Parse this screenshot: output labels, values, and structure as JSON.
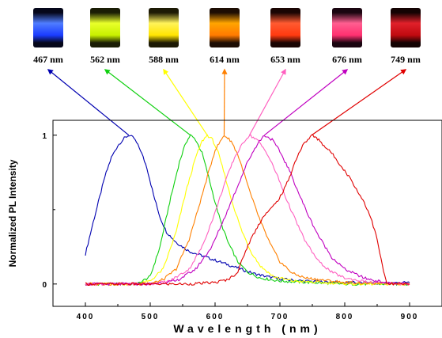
{
  "photos": [
    {
      "label": "467 nm",
      "color": "#1a3cff",
      "glow": "#4f7dff",
      "bg": "#05071a"
    },
    {
      "label": "562 nm",
      "color": "#c8f000",
      "glow": "#e8ff2a",
      "bg": "#1a1d05"
    },
    {
      "label": "588 nm",
      "color": "#ffe400",
      "glow": "#fff35a",
      "bg": "#1d1a05"
    },
    {
      "label": "614 nm",
      "color": "#ff7a00",
      "glow": "#ffa400",
      "bg": "#1d0d03"
    },
    {
      "label": "653 nm",
      "color": "#ff3a10",
      "glow": "#ff5a30",
      "bg": "#1a0503"
    },
    {
      "label": "676 nm",
      "color": "#ff3070",
      "glow": "#ff5e90",
      "bg": "#1a0510"
    },
    {
      "label": "749 nm",
      "color": "#c00a10",
      "glow": "#e0202a",
      "bg": "#140303"
    }
  ],
  "chart_data": {
    "type": "line",
    "xlabel": "Wavelength (nm)",
    "ylabel": "Normalized PL Intensity",
    "xlim": [
      350,
      950
    ],
    "ylim": [
      -0.15,
      1.1
    ],
    "x_ticks": [
      400,
      500,
      600,
      700,
      800,
      900
    ],
    "y_ticks": [
      0,
      1
    ],
    "series": [
      {
        "color": "#0000b0",
        "points": [
          [
            400,
            0.2
          ],
          [
            410,
            0.38
          ],
          [
            420,
            0.55
          ],
          [
            430,
            0.72
          ],
          [
            440,
            0.85
          ],
          [
            450,
            0.93
          ],
          [
            460,
            0.98
          ],
          [
            467,
            1.0
          ],
          [
            475,
            0.98
          ],
          [
            485,
            0.9
          ],
          [
            495,
            0.78
          ],
          [
            505,
            0.6
          ],
          [
            515,
            0.45
          ],
          [
            525,
            0.35
          ],
          [
            540,
            0.28
          ],
          [
            560,
            0.22
          ],
          [
            580,
            0.19
          ],
          [
            600,
            0.16
          ],
          [
            620,
            0.13
          ],
          [
            640,
            0.1
          ],
          [
            660,
            0.07
          ],
          [
            680,
            0.05
          ],
          [
            700,
            0.035
          ],
          [
            720,
            0.025
          ],
          [
            740,
            0.02
          ],
          [
            760,
            0.015
          ],
          [
            800,
            0.01
          ],
          [
            850,
            0.005
          ],
          [
            900,
            0.01
          ]
        ]
      },
      {
        "color": "#10d010",
        "points": [
          [
            400,
            0.0
          ],
          [
            450,
            0.0
          ],
          [
            480,
            0.0
          ],
          [
            500,
            0.05
          ],
          [
            515,
            0.25
          ],
          [
            530,
            0.55
          ],
          [
            545,
            0.82
          ],
          [
            555,
            0.95
          ],
          [
            562,
            1.0
          ],
          [
            570,
            0.97
          ],
          [
            580,
            0.88
          ],
          [
            590,
            0.72
          ],
          [
            600,
            0.55
          ],
          [
            610,
            0.4
          ],
          [
            620,
            0.28
          ],
          [
            635,
            0.15
          ],
          [
            650,
            0.08
          ],
          [
            670,
            0.04
          ],
          [
            700,
            0.02
          ],
          [
            750,
            0.01
          ],
          [
            800,
            0.0
          ],
          [
            900,
            0.0
          ]
        ]
      },
      {
        "color": "#ffff00",
        "points": [
          [
            400,
            0.0
          ],
          [
            480,
            0.0
          ],
          [
            500,
            0.02
          ],
          [
            520,
            0.1
          ],
          [
            540,
            0.35
          ],
          [
            555,
            0.62
          ],
          [
            570,
            0.85
          ],
          [
            580,
            0.96
          ],
          [
            588,
            1.0
          ],
          [
            596,
            0.97
          ],
          [
            605,
            0.88
          ],
          [
            615,
            0.73
          ],
          [
            625,
            0.57
          ],
          [
            640,
            0.37
          ],
          [
            655,
            0.22
          ],
          [
            670,
            0.12
          ],
          [
            690,
            0.05
          ],
          [
            720,
            0.02
          ],
          [
            760,
            0.01
          ],
          [
            820,
            0.0
          ],
          [
            900,
            0.0
          ]
        ]
      },
      {
        "color": "#ff8000",
        "points": [
          [
            400,
            0.0
          ],
          [
            500,
            0.0
          ],
          [
            520,
            0.03
          ],
          [
            540,
            0.1
          ],
          [
            560,
            0.3
          ],
          [
            575,
            0.52
          ],
          [
            590,
            0.75
          ],
          [
            600,
            0.9
          ],
          [
            614,
            1.0
          ],
          [
            625,
            0.96
          ],
          [
            635,
            0.87
          ],
          [
            645,
            0.74
          ],
          [
            655,
            0.6
          ],
          [
            670,
            0.42
          ],
          [
            685,
            0.27
          ],
          [
            700,
            0.15
          ],
          [
            720,
            0.07
          ],
          [
            740,
            0.04
          ],
          [
            760,
            0.03
          ],
          [
            800,
            0.01
          ],
          [
            900,
            0.0
          ]
        ]
      },
      {
        "color": "#ff60c0",
        "points": [
          [
            400,
            0.0
          ],
          [
            500,
            0.0
          ],
          [
            530,
            0.02
          ],
          [
            560,
            0.1
          ],
          [
            580,
            0.25
          ],
          [
            600,
            0.48
          ],
          [
            615,
            0.68
          ],
          [
            630,
            0.85
          ],
          [
            645,
            0.96
          ],
          [
            653,
            1.0
          ],
          [
            665,
            0.97
          ],
          [
            680,
            0.88
          ],
          [
            695,
            0.74
          ],
          [
            710,
            0.57
          ],
          [
            725,
            0.42
          ],
          [
            740,
            0.28
          ],
          [
            760,
            0.15
          ],
          [
            780,
            0.08
          ],
          [
            800,
            0.04
          ],
          [
            840,
            0.01
          ],
          [
            900,
            0.0
          ]
        ]
      },
      {
        "color": "#c000c0",
        "points": [
          [
            400,
            0.0
          ],
          [
            500,
            0.0
          ],
          [
            540,
            0.02
          ],
          [
            570,
            0.1
          ],
          [
            595,
            0.25
          ],
          [
            615,
            0.45
          ],
          [
            635,
            0.66
          ],
          [
            650,
            0.82
          ],
          [
            665,
            0.94
          ],
          [
            676,
            1.0
          ],
          [
            688,
            0.97
          ],
          [
            700,
            0.89
          ],
          [
            715,
            0.76
          ],
          [
            730,
            0.6
          ],
          [
            745,
            0.45
          ],
          [
            760,
            0.32
          ],
          [
            780,
            0.18
          ],
          [
            800,
            0.1
          ],
          [
            830,
            0.04
          ],
          [
            860,
            0.01
          ],
          [
            900,
            0.0
          ]
        ]
      },
      {
        "color": "#e00000",
        "points": [
          [
            400,
            0.0
          ],
          [
            560,
            0.0
          ],
          [
            600,
            0.01
          ],
          [
            620,
            0.03
          ],
          [
            635,
            0.08
          ],
          [
            645,
            0.2
          ],
          [
            655,
            0.3
          ],
          [
            665,
            0.38
          ],
          [
            675,
            0.46
          ],
          [
            685,
            0.5
          ],
          [
            695,
            0.55
          ],
          [
            705,
            0.62
          ],
          [
            715,
            0.72
          ],
          [
            725,
            0.84
          ],
          [
            735,
            0.93
          ],
          [
            749,
            1.0
          ],
          [
            760,
            0.97
          ],
          [
            770,
            0.92
          ],
          [
            780,
            0.88
          ],
          [
            790,
            0.82
          ],
          [
            800,
            0.76
          ],
          [
            810,
            0.7
          ],
          [
            820,
            0.62
          ],
          [
            830,
            0.55
          ],
          [
            840,
            0.45
          ],
          [
            850,
            0.3
          ],
          [
            858,
            0.12
          ],
          [
            865,
            0.0
          ],
          [
            900,
            0.0
          ]
        ]
      }
    ]
  }
}
